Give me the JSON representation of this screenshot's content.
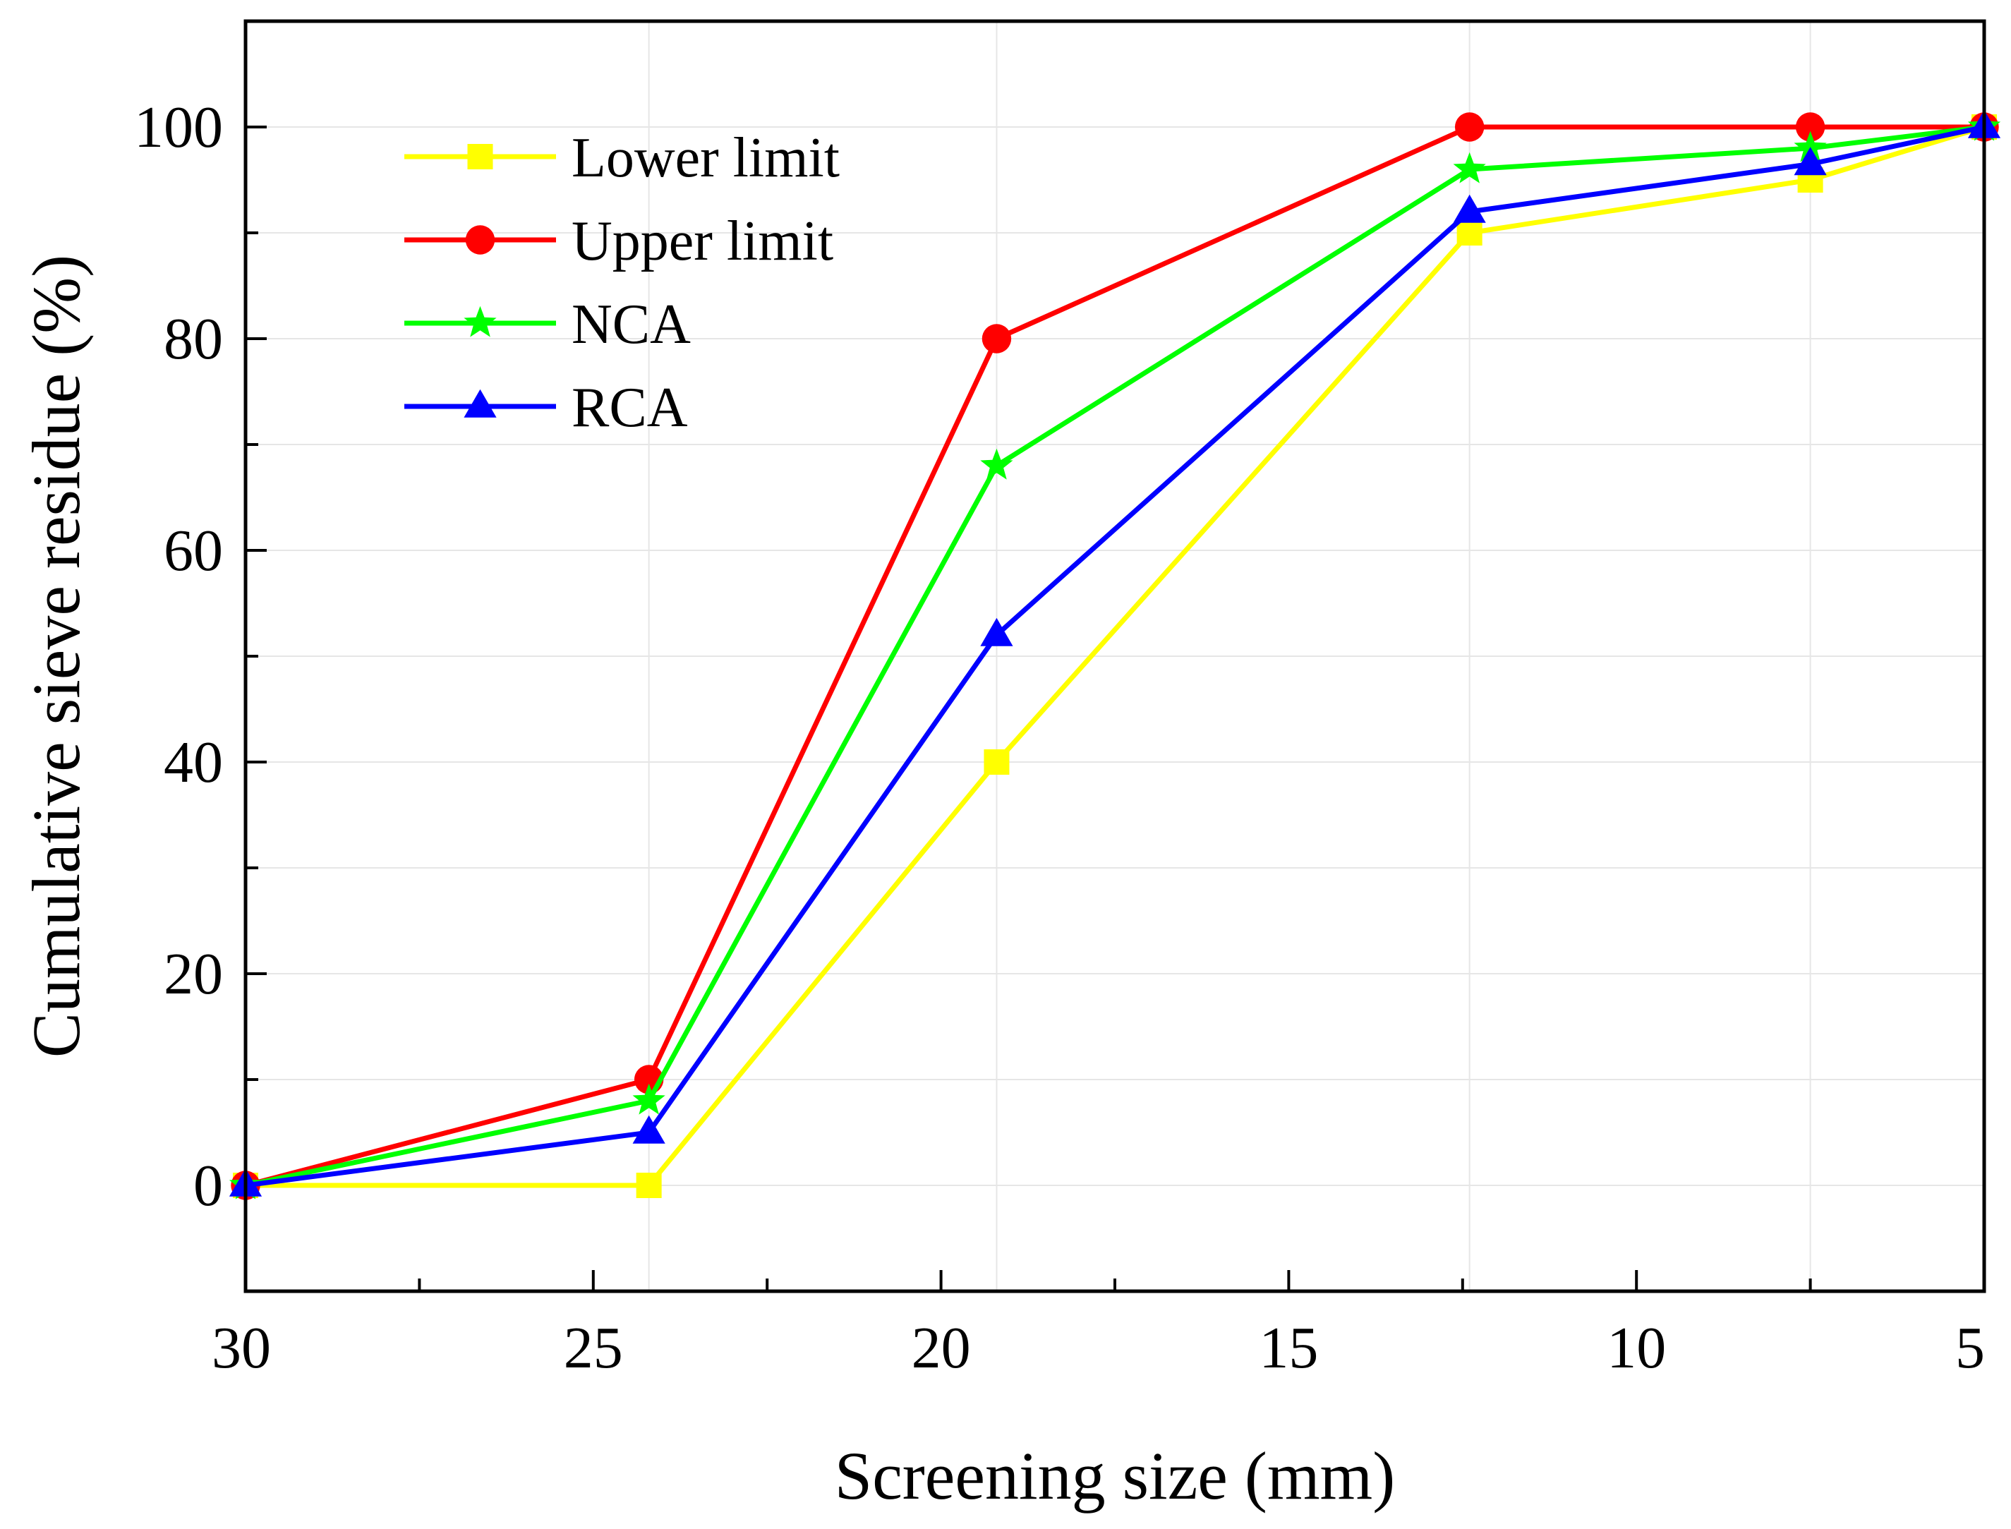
{
  "chart_data": {
    "type": "line",
    "title": "",
    "xlabel": "Screening size (mm)",
    "ylabel": "Cumulative sieve residue (%)",
    "xlim": [
      30,
      5
    ],
    "ylim": [
      -10,
      110
    ],
    "x_ticks": [
      30,
      25,
      20,
      15,
      10,
      5
    ],
    "y_ticks": [
      0,
      20,
      40,
      60,
      80,
      100
    ],
    "grid": true,
    "legend_position": "top-left",
    "x": [
      30,
      24.2,
      19.2,
      12.4,
      7.5,
      5
    ],
    "series": [
      {
        "name": "Lower limit",
        "values": [
          0,
          0,
          40,
          90,
          95,
          100
        ],
        "color": "#ffff00",
        "marker": "square"
      },
      {
        "name": "Upper limit",
        "values": [
          0,
          10,
          80,
          100,
          100,
          100
        ],
        "color": "#ff0000",
        "marker": "circle"
      },
      {
        "name": "NCA",
        "values": [
          0,
          8,
          68,
          96,
          98,
          100
        ],
        "color": "#00ff00",
        "marker": "star"
      },
      {
        "name": "RCA",
        "values": [
          0,
          5,
          52,
          92,
          96.5,
          100
        ],
        "color": "#0000ff",
        "marker": "triangle"
      }
    ]
  }
}
